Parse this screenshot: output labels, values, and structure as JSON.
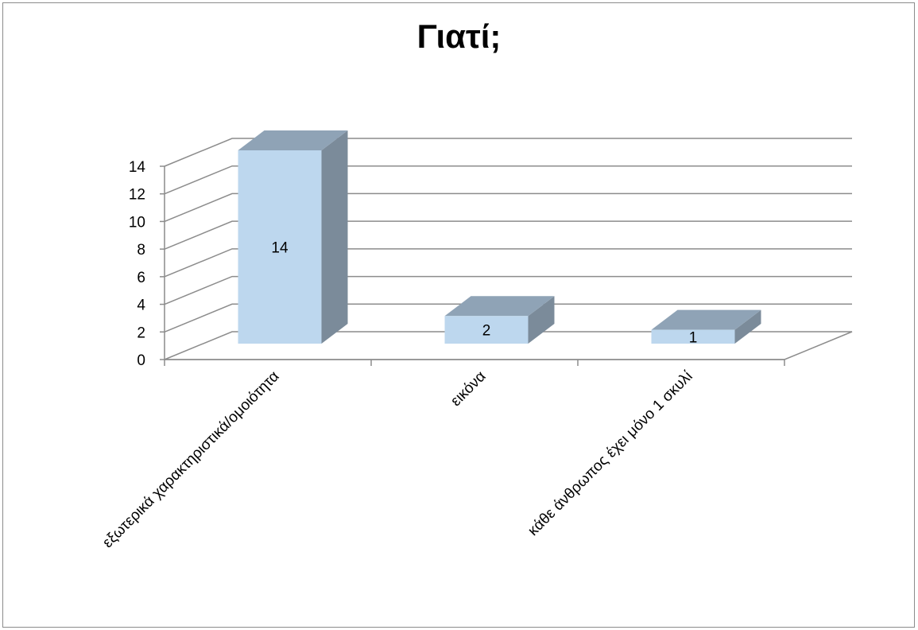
{
  "chart_data": {
    "type": "bar",
    "title": "Γιατί;",
    "categories": [
      "εξωτερικά χαρακτηριστικά/ομοιότητα",
      "εικόνα",
      "κάθε άνθρωπος έχει μόνο 1 σκυλί"
    ],
    "values": [
      14,
      2,
      1
    ],
    "data_labels": [
      "14",
      "2",
      "1"
    ],
    "xlabel": "",
    "ylabel": "",
    "ylim": [
      0,
      14
    ],
    "yticks": [
      0,
      2,
      4,
      6,
      8,
      10,
      12,
      14
    ],
    "grid": true,
    "legend": "none",
    "style": "3d-column",
    "colors": {
      "bar_front": "#bdd7ee",
      "bar_top": "#8fa3b6",
      "bar_side": "#7b8b9a",
      "grid": "#8c8c8c",
      "frame": "#8c8c8c"
    }
  }
}
